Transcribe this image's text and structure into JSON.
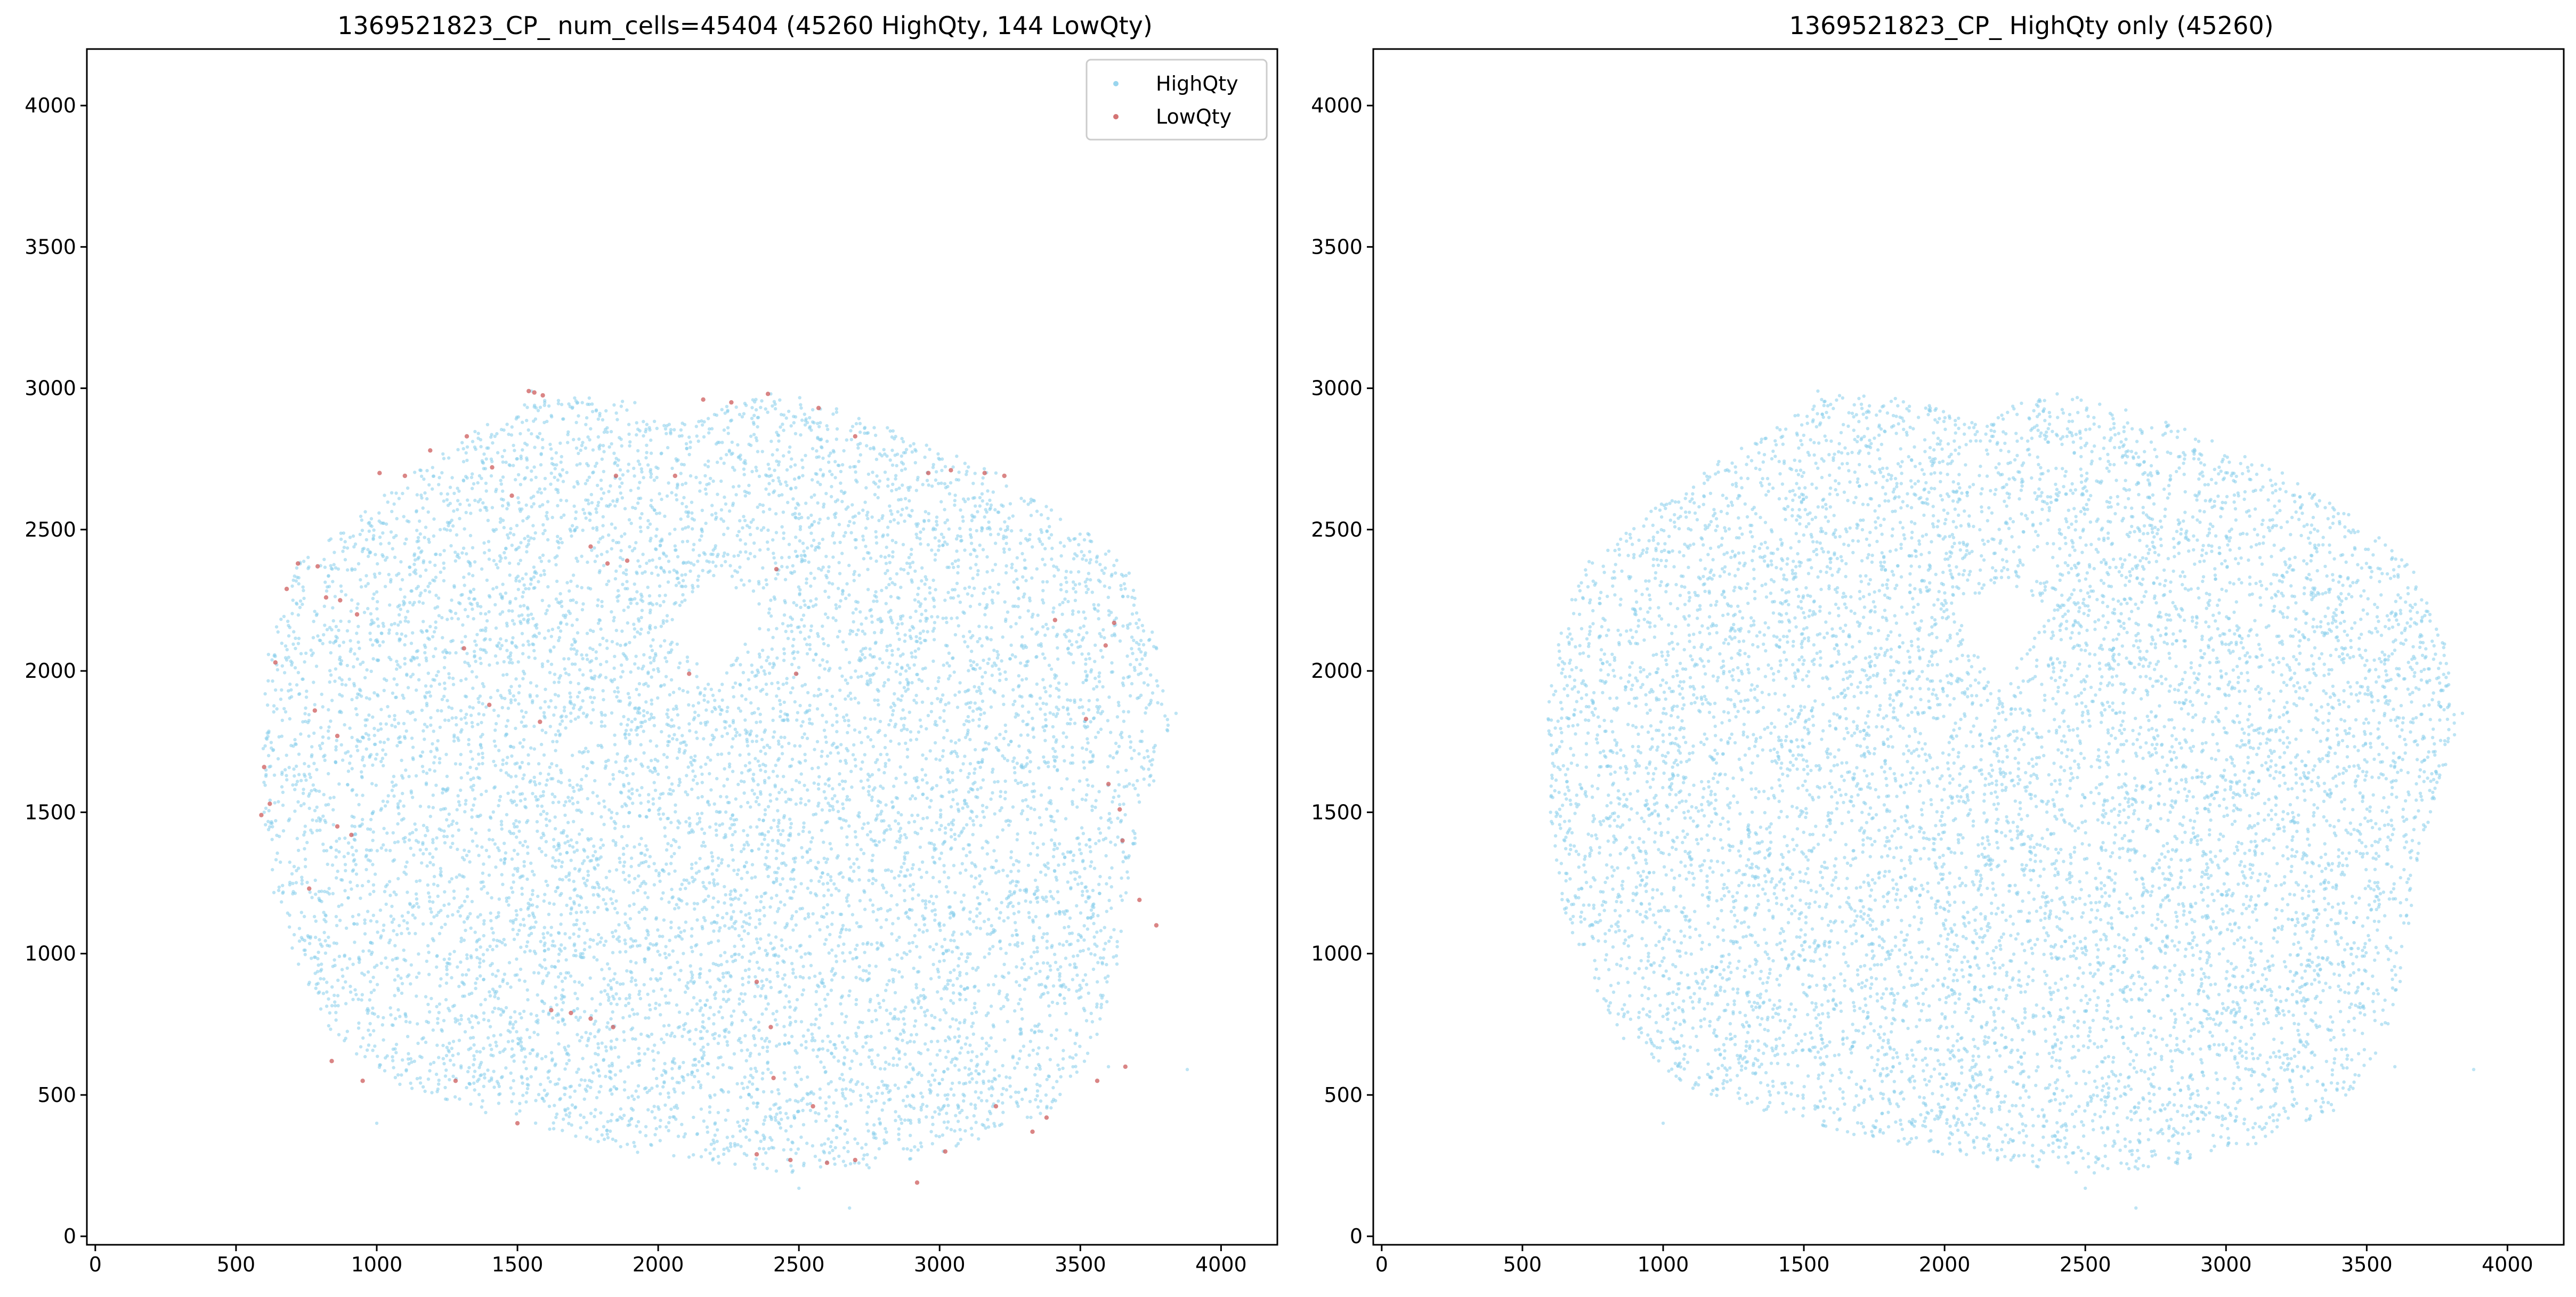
{
  "figure": {
    "panels": [
      {
        "title": "1369521823_CP_ num_cells=45404 (45260 HighQty, 144 LowQty)",
        "show_lowqty": true
      },
      {
        "title": "1369521823_CP_ HighQty only (45260)",
        "show_lowqty": false
      }
    ]
  },
  "chart_data": [
    {
      "type": "scatter",
      "title": "1369521823_CP_ num_cells=45404 (45260 HighQty, 144 LowQty)",
      "xlabel": "",
      "ylabel": "",
      "xlim": [
        -30,
        4200
      ],
      "ylim": [
        -30,
        4200
      ],
      "x_ticks": [
        0,
        500,
        1000,
        1500,
        2000,
        2500,
        3000,
        3500,
        4000
      ],
      "y_ticks": [
        0,
        500,
        1000,
        1500,
        2000,
        2500,
        3000,
        3500,
        4000
      ],
      "x_tick_labels": [
        "0",
        "500",
        "1000",
        "1500",
        "2000",
        "2500",
        "3000",
        "3500",
        "4000"
      ],
      "y_tick_labels": [
        "0",
        "500",
        "1000",
        "1500",
        "2000",
        "2500",
        "3000",
        "3500",
        "4000"
      ],
      "grid": false,
      "legend_position": "top-right",
      "counts": {
        "total": 45404,
        "HighQty": 45260,
        "LowQty": 144
      },
      "series": [
        {
          "name": "HighQty",
          "color": "#87ceeb",
          "description": "dense cloud of cells forming a rounded tissue section",
          "outline": [
            [
              600,
              1500
            ],
            [
              590,
              1850
            ],
            [
              620,
              2100
            ],
            [
              720,
              2380
            ],
            [
              900,
              2520
            ],
            [
              1100,
              2680
            ],
            [
              1350,
              2850
            ],
            [
              1600,
              2980
            ],
            [
              1900,
              2960
            ],
            [
              2100,
              2880
            ],
            [
              2300,
              2960
            ],
            [
              2500,
              2970
            ],
            [
              2800,
              2880
            ],
            [
              3100,
              2750
            ],
            [
              3400,
              2580
            ],
            [
              3650,
              2400
            ],
            [
              3780,
              2100
            ],
            [
              3820,
              1800
            ],
            [
              3700,
              1400
            ],
            [
              3620,
              900
            ],
            [
              3550,
              650
            ],
            [
              3400,
              450
            ],
            [
              3100,
              320
            ],
            [
              2800,
              240
            ],
            [
              2500,
              220
            ],
            [
              2200,
              260
            ],
            [
              1900,
              300
            ],
            [
              1500,
              400
            ],
            [
              1100,
              520
            ],
            [
              850,
              700
            ],
            [
              700,
              1000
            ],
            [
              620,
              1250
            ]
          ],
          "hole": [
            [
              2040,
              2200
            ],
            [
              2200,
              2330
            ],
            [
              2380,
              2220
            ],
            [
              2200,
              1920
            ]
          ],
          "sample_points": [
            [
              600,
              1500
            ],
            [
              700,
              2300
            ],
            [
              1550,
              2990
            ],
            [
              2400,
              2980
            ],
            [
              3200,
              2700
            ],
            [
              3700,
              2100
            ],
            [
              3840,
              1850
            ],
            [
              3600,
              600
            ],
            [
              2500,
              170
            ],
            [
              2680,
              100
            ],
            [
              3880,
              590
            ],
            [
              1000,
              400
            ]
          ]
        },
        {
          "name": "LowQty",
          "color": "#cd5c5c",
          "description": "144 low-quality cells scattered mostly near the tissue edges",
          "sample_points": [
            [
              1540,
              2990
            ],
            [
              1560,
              2985
            ],
            [
              1590,
              2975
            ],
            [
              1190,
              2780
            ],
            [
              1010,
              2700
            ],
            [
              1100,
              2690
            ],
            [
              1320,
              2830
            ],
            [
              1410,
              2720
            ],
            [
              1850,
              2690
            ],
            [
              2060,
              2690
            ],
            [
              2160,
              2960
            ],
            [
              2260,
              2950
            ],
            [
              2390,
              2980
            ],
            [
              2570,
              2930
            ],
            [
              2700,
              2830
            ],
            [
              2960,
              2700
            ],
            [
              3040,
              2710
            ],
            [
              3160,
              2700
            ],
            [
              3230,
              2690
            ],
            [
              1760,
              2440
            ],
            [
              1820,
              2380
            ],
            [
              1890,
              2390
            ],
            [
              1480,
              2620
            ],
            [
              2420,
              2360
            ],
            [
              680,
              2290
            ],
            [
              720,
              2380
            ],
            [
              790,
              2370
            ],
            [
              820,
              2260
            ],
            [
              870,
              2250
            ],
            [
              930,
              2200
            ],
            [
              640,
              2030
            ],
            [
              780,
              1860
            ],
            [
              860,
              1770
            ],
            [
              1310,
              2080
            ],
            [
              1400,
              1880
            ],
            [
              1580,
              1820
            ],
            [
              2110,
              1990
            ],
            [
              2490,
              1990
            ],
            [
              3590,
              2090
            ],
            [
              3620,
              2170
            ],
            [
              3410,
              2180
            ],
            [
              3520,
              1830
            ],
            [
              3600,
              1600
            ],
            [
              3640,
              1510
            ],
            [
              3650,
              1400
            ],
            [
              3710,
              1190
            ],
            [
              3770,
              1100
            ],
            [
              600,
              1660
            ],
            [
              620,
              1530
            ],
            [
              590,
              1490
            ],
            [
              860,
              1450
            ],
            [
              910,
              1420
            ],
            [
              760,
              1230
            ],
            [
              1620,
              800
            ],
            [
              1690,
              790
            ],
            [
              1760,
              770
            ],
            [
              1840,
              740
            ],
            [
              2350,
              900
            ],
            [
              2400,
              740
            ],
            [
              2410,
              560
            ],
            [
              2550,
              460
            ],
            [
              2700,
              270
            ],
            [
              2600,
              260
            ],
            [
              2470,
              270
            ],
            [
              2350,
              290
            ],
            [
              2920,
              190
            ],
            [
              3020,
              300
            ],
            [
              3330,
              370
            ],
            [
              3380,
              420
            ],
            [
              3560,
              550
            ],
            [
              3660,
              600
            ],
            [
              3200,
              460
            ],
            [
              950,
              550
            ],
            [
              840,
              620
            ],
            [
              1280,
              550
            ],
            [
              1500,
              400
            ]
          ]
        }
      ]
    },
    {
      "type": "scatter",
      "title": "1369521823_CP_ HighQty only (45260)",
      "xlabel": "",
      "ylabel": "",
      "xlim": [
        -30,
        4200
      ],
      "ylim": [
        -30,
        4200
      ],
      "x_ticks": [
        0,
        500,
        1000,
        1500,
        2000,
        2500,
        3000,
        3500,
        4000
      ],
      "y_ticks": [
        0,
        500,
        1000,
        1500,
        2000,
        2500,
        3000,
        3500,
        4000
      ],
      "x_tick_labels": [
        "0",
        "500",
        "1000",
        "1500",
        "2000",
        "2500",
        "3000",
        "3500",
        "4000"
      ],
      "y_tick_labels": [
        "0",
        "500",
        "1000",
        "1500",
        "2000",
        "2500",
        "3000",
        "3500",
        "4000"
      ],
      "grid": false,
      "legend_position": "none",
      "counts": {
        "HighQty": 45260
      },
      "series": [
        {
          "name": "HighQty",
          "color": "#87ceeb",
          "description": "same tissue section showing only high-quality cells",
          "outline": [
            [
              600,
              1500
            ],
            [
              590,
              1850
            ],
            [
              620,
              2100
            ],
            [
              720,
              2380
            ],
            [
              900,
              2520
            ],
            [
              1100,
              2680
            ],
            [
              1350,
              2850
            ],
            [
              1600,
              2980
            ],
            [
              1900,
              2960
            ],
            [
              2100,
              2880
            ],
            [
              2300,
              2960
            ],
            [
              2500,
              2970
            ],
            [
              2800,
              2880
            ],
            [
              3100,
              2750
            ],
            [
              3400,
              2580
            ],
            [
              3650,
              2400
            ],
            [
              3780,
              2100
            ],
            [
              3820,
              1800
            ],
            [
              3700,
              1400
            ],
            [
              3620,
              900
            ],
            [
              3550,
              650
            ],
            [
              3400,
              450
            ],
            [
              3100,
              320
            ],
            [
              2800,
              240
            ],
            [
              2500,
              220
            ],
            [
              2200,
              260
            ],
            [
              1900,
              300
            ],
            [
              1500,
              400
            ],
            [
              1100,
              520
            ],
            [
              850,
              700
            ],
            [
              700,
              1000
            ],
            [
              620,
              1250
            ]
          ],
          "hole": [
            [
              2040,
              2200
            ],
            [
              2200,
              2330
            ],
            [
              2380,
              2220
            ],
            [
              2200,
              1920
            ]
          ],
          "sample_points": [
            [
              600,
              1500
            ],
            [
              700,
              2300
            ],
            [
              1550,
              2990
            ],
            [
              2400,
              2980
            ],
            [
              3200,
              2700
            ],
            [
              3700,
              2100
            ],
            [
              3840,
              1850
            ],
            [
              3600,
              600
            ],
            [
              2500,
              170
            ],
            [
              2680,
              100
            ],
            [
              3880,
              590
            ],
            [
              1000,
              400
            ]
          ]
        }
      ]
    }
  ]
}
